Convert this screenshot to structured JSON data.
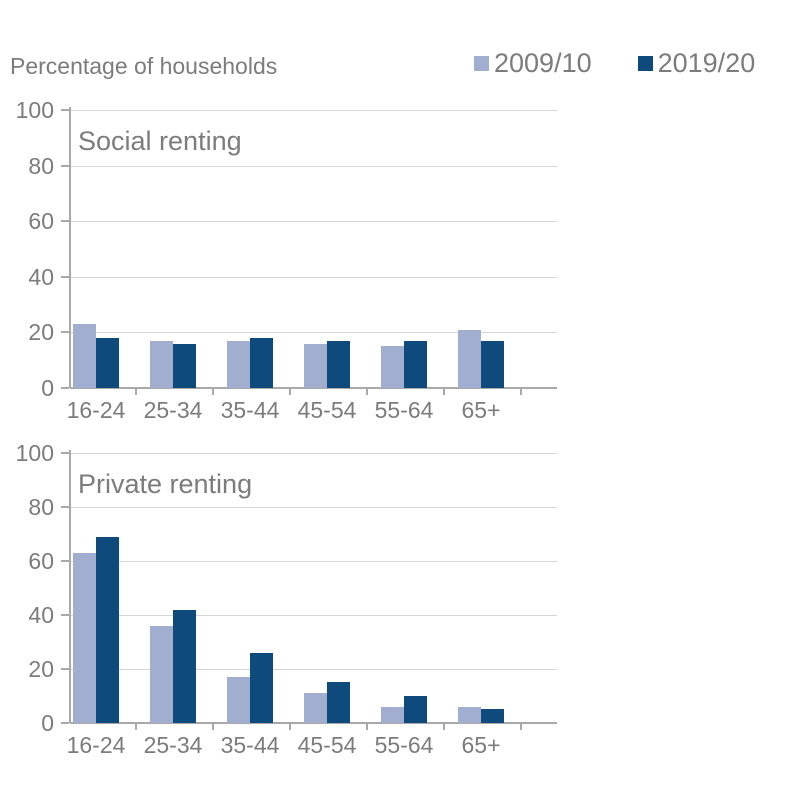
{
  "header": {
    "title": "Percentage of households"
  },
  "legend": {
    "items": [
      {
        "label": "2009/10",
        "color": "#a2aed0"
      },
      {
        "label": "2019/20",
        "color": "#0e4a7c"
      }
    ]
  },
  "colors": {
    "series_2009_10": "#a2aed0",
    "series_2019_20": "#0e4a7c",
    "text": "#7c7c7c",
    "gridline": "#d6d6d6",
    "axis": "#a9a9a9"
  },
  "chart_data": [
    {
      "type": "bar",
      "title": "Social renting",
      "categories": [
        "16-24",
        "25-34",
        "35-44",
        "45-54",
        "55-64",
        "65+"
      ],
      "series": [
        {
          "name": "2009/10",
          "values": [
            23,
            17,
            17,
            16,
            15,
            21
          ]
        },
        {
          "name": "2019/20",
          "values": [
            18,
            16,
            18,
            17,
            17,
            17
          ]
        }
      ],
      "xlabel": "",
      "ylabel": "",
      "ylim": [
        0,
        100
      ],
      "yticks": [
        100,
        80,
        60,
        40,
        20,
        0
      ],
      "grid": true,
      "legend_position": "top-right"
    },
    {
      "type": "bar",
      "title": "Private renting",
      "categories": [
        "16-24",
        "25-34",
        "35-44",
        "45-54",
        "55-64",
        "65+"
      ],
      "series": [
        {
          "name": "2009/10",
          "values": [
            63,
            36,
            17,
            11,
            6,
            6
          ]
        },
        {
          "name": "2019/20",
          "values": [
            69,
            42,
            26,
            15,
            10,
            5
          ]
        }
      ],
      "xlabel": "",
      "ylabel": "",
      "ylim": [
        0,
        100
      ],
      "yticks": [
        100,
        80,
        60,
        40,
        20,
        0
      ],
      "grid": true,
      "legend_position": "top-right"
    }
  ]
}
